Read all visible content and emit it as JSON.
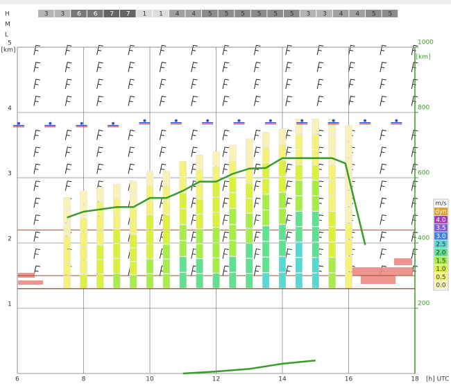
{
  "chart_data": {
    "type": "meteogram",
    "cloud_layers": [
      "H",
      "M",
      "L"
    ],
    "cloud_cover": [
      3,
      3,
      6,
      6,
      7,
      7,
      1,
      1,
      4,
      4,
      5,
      5,
      5,
      5,
      5,
      5,
      3,
      3,
      4,
      4,
      5,
      5
    ],
    "xlim": [
      6,
      18
    ],
    "xticks": [
      6,
      8,
      10,
      12,
      14,
      16,
      18
    ],
    "xlabel": "[h] UTC",
    "ylim": [
      0,
      5
    ],
    "yticks": [
      1,
      2,
      3,
      4,
      5
    ],
    "ylabel": "[km]",
    "y2lim": [
      0,
      1000
    ],
    "y2ticks": [
      200,
      400,
      600,
      800,
      1000
    ],
    "y2label": "[km]",
    "y2color": "#3a9a2a",
    "grid": true,
    "thermal_base": 1.3,
    "thermals": [
      {
        "x": 7.5,
        "top": 2.7,
        "values": [
          0.5,
          0.5,
          0.5,
          0.5,
          0.0,
          0.0,
          0.0
        ]
      },
      {
        "x": 8,
        "top": 2.8,
        "values": [
          1.0,
          0.5,
          0.5,
          0.5,
          0.5,
          0.0,
          0.0
        ]
      },
      {
        "x": 8.5,
        "top": 2.85,
        "values": [
          1.0,
          1.0,
          1.0,
          0.5,
          0.5,
          0.5,
          0.0
        ]
      },
      {
        "x": 9,
        "top": 2.9,
        "values": [
          1.5,
          1.0,
          1.0,
          1.0,
          0.5,
          0.5,
          0.0
        ]
      },
      {
        "x": 9.5,
        "top": 2.95,
        "values": [
          1.5,
          1.0,
          1.0,
          1.0,
          0.5,
          0.5,
          0.0,
          0.0
        ]
      },
      {
        "x": 10,
        "top": 3.1,
        "values": [
          1.5,
          1.5,
          1.0,
          1.0,
          1.0,
          0.5,
          0.5,
          0.0
        ]
      },
      {
        "x": 10.5,
        "top": 3.1,
        "values": [
          1.5,
          1.5,
          1.5,
          1.0,
          1.0,
          0.5,
          0.5,
          0.0
        ]
      },
      {
        "x": 11,
        "top": 3.25,
        "values": [
          2.0,
          2.0,
          1.5,
          1.5,
          1.0,
          1.0,
          0.5,
          0.5
        ]
      },
      {
        "x": 11.5,
        "top": 3.35,
        "values": [
          2.0,
          2.0,
          1.5,
          1.5,
          1.0,
          1.0,
          0.5,
          0.5,
          0.0
        ]
      },
      {
        "x": 12,
        "top": 3.4,
        "values": [
          2.0,
          1.5,
          1.5,
          1.5,
          1.0,
          1.0,
          1.0,
          0.5,
          0.0
        ]
      },
      {
        "x": 12.5,
        "top": 3.5,
        "values": [
          2.0,
          2.0,
          1.5,
          1.5,
          1.5,
          1.0,
          1.0,
          0.5,
          0.0
        ]
      },
      {
        "x": 13,
        "top": 3.6,
        "values": [
          2.0,
          2.0,
          2.0,
          1.5,
          1.5,
          1.0,
          1.0,
          0.5,
          0.0,
          0.0
        ]
      },
      {
        "x": 13.5,
        "top": 3.7,
        "values": [
          2.5,
          2.0,
          2.0,
          2.0,
          1.5,
          1.5,
          1.0,
          1.0,
          0.5,
          0.0
        ]
      },
      {
        "x": 14,
        "top": 3.75,
        "values": [
          2.5,
          2.5,
          2.0,
          2.0,
          1.5,
          1.5,
          1.0,
          1.0,
          0.5,
          0.0
        ]
      },
      {
        "x": 14.5,
        "top": 3.9,
        "values": [
          2.5,
          2.5,
          2.5,
          2.0,
          2.0,
          1.5,
          1.5,
          1.0,
          0.5,
          0.5,
          0.0
        ]
      },
      {
        "x": 15,
        "top": 3.9,
        "values": [
          2.5,
          2.5,
          2.0,
          2.0,
          2.0,
          1.5,
          1.5,
          1.0,
          0.5,
          0.5,
          0.0
        ]
      },
      {
        "x": 15.5,
        "top": 3.9,
        "values": [
          1.5,
          1.5,
          1.0,
          1.0,
          1.0,
          0.5,
          0.5,
          0.5,
          0.0,
          0.0,
          0.0
        ]
      },
      {
        "x": 16,
        "top": 3.8,
        "values": [
          0.5,
          0.5,
          0.5,
          0.5,
          0.0,
          0.0,
          0.0,
          0.0,
          0.0,
          0.0
        ]
      }
    ],
    "series": [
      {
        "color": "#3a9a2a",
        "x": [
          7.5,
          8,
          9,
          9.5,
          10,
          10.5,
          11,
          11.5,
          12,
          12.5,
          13,
          13.5,
          14,
          14.5,
          15,
          15.5,
          15.9,
          16.5
        ],
        "values": [
          2.39,
          2.48,
          2.55,
          2.55,
          2.69,
          2.69,
          2.8,
          2.94,
          2.94,
          3.06,
          3.14,
          3.15,
          3.3,
          3.3,
          3.3,
          3.3,
          3.22,
          1.97
        ]
      },
      {
        "color": "#3a9a2a",
        "x": [
          11,
          12,
          13,
          14,
          15
        ],
        "values": [
          0,
          0.03,
          0.07,
          0.15,
          0.2
        ]
      }
    ],
    "levels": [
      1.3,
      1.5,
      2.2
    ],
    "legend": {
      "title": "m/s",
      "items": [
        {
          "label": "dyn",
          "color": "#e0a030"
        },
        {
          "value": 4,
          "label": "4.0",
          "color": "#a040b0"
        },
        {
          "value": 3.5,
          "label": "3.5",
          "color": "#8060d0"
        },
        {
          "value": 3,
          "label": "3.0",
          "color": "#4080e0"
        },
        {
          "value": 2.5,
          "label": "2.5",
          "color": "#58d8d0"
        },
        {
          "value": 2,
          "label": "2.0",
          "color": "#60e090"
        },
        {
          "value": 1.5,
          "label": "1.5",
          "color": "#a8ec48"
        },
        {
          "value": 1,
          "label": "1.0",
          "color": "#dcf040"
        },
        {
          "value": 0.5,
          "label": "0.5",
          "color": "#f4f27a"
        },
        {
          "value": 0,
          "label": "0.0",
          "color": "#f8f2b8"
        }
      ]
    }
  }
}
